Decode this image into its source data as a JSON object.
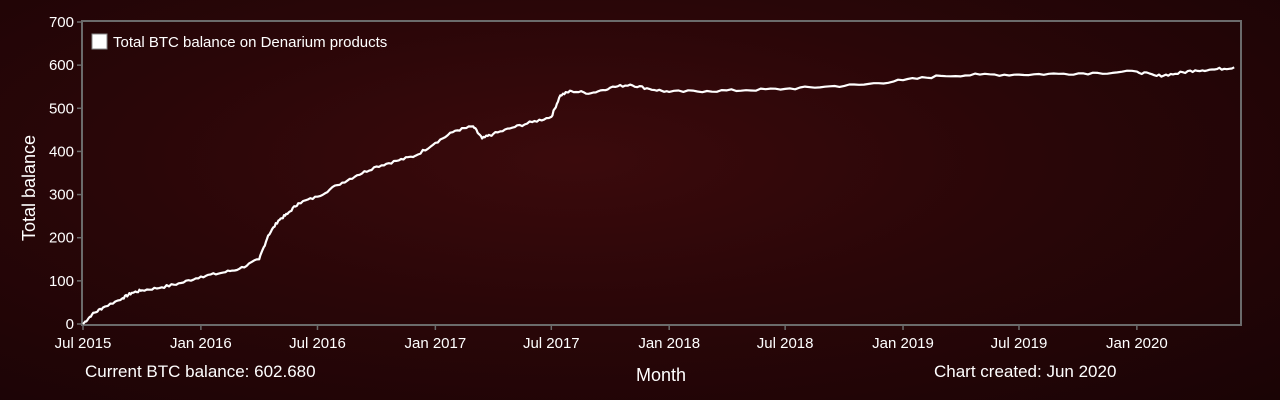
{
  "chart_data": {
    "type": "line",
    "ylabel": "Total balance",
    "xlabel": "Month",
    "ylim": [
      0,
      700
    ],
    "y_ticks": [
      "0",
      "100",
      "200",
      "300",
      "400",
      "500",
      "600",
      "700"
    ],
    "x_ticks": [
      "Jul 2015",
      "Jan 2016",
      "Jul 2016",
      "Jan 2017",
      "Jul 2017",
      "Jan 2018",
      "Jul 2018",
      "Jan 2019",
      "Jul 2019",
      "Jan 2020"
    ],
    "legend": "top-left",
    "grid": false,
    "series": [
      {
        "name": "Total BTC balance on Denarium products",
        "color": "#ffffff",
        "x": [
          "2015-07-01",
          "2015-07-15",
          "2015-08-01",
          "2015-09-01",
          "2015-09-15",
          "2015-10-01",
          "2015-11-01",
          "2015-12-01",
          "2016-01-01",
          "2016-02-01",
          "2016-03-01",
          "2016-04-01",
          "2016-04-15",
          "2016-05-01",
          "2016-05-15",
          "2016-06-01",
          "2016-07-01",
          "2016-08-01",
          "2016-09-01",
          "2016-10-01",
          "2016-11-01",
          "2016-12-01",
          "2017-01-01",
          "2017-02-01",
          "2017-03-01",
          "2017-03-15",
          "2017-04-01",
          "2017-05-01",
          "2017-06-01",
          "2017-07-01",
          "2017-07-15",
          "2017-08-01",
          "2017-09-01",
          "2017-10-01",
          "2017-11-01",
          "2017-12-01",
          "2018-01-01",
          "2018-03-01",
          "2018-05-01",
          "2018-07-01",
          "2018-09-01",
          "2018-11-01",
          "2019-01-01",
          "2019-03-01",
          "2019-05-01",
          "2019-07-01",
          "2019-09-01",
          "2019-11-01",
          "2020-01-01",
          "2020-02-01",
          "2020-03-01",
          "2020-04-01",
          "2020-05-01",
          "2020-06-01"
        ],
        "values": [
          0,
          22,
          38,
          60,
          72,
          78,
          85,
          95,
          110,
          118,
          128,
          150,
          205,
          240,
          255,
          280,
          295,
          322,
          345,
          365,
          378,
          390,
          420,
          448,
          458,
          430,
          440,
          455,
          468,
          480,
          530,
          540,
          535,
          548,
          555,
          545,
          538,
          540,
          542,
          545,
          550,
          555,
          565,
          575,
          578,
          578,
          580,
          582,
          585,
          575,
          580,
          588,
          590,
          595
        ]
      }
    ]
  },
  "footer": {
    "current_balance": "Current BTC balance: 602.680",
    "created": "Chart created: Jun 2020"
  }
}
